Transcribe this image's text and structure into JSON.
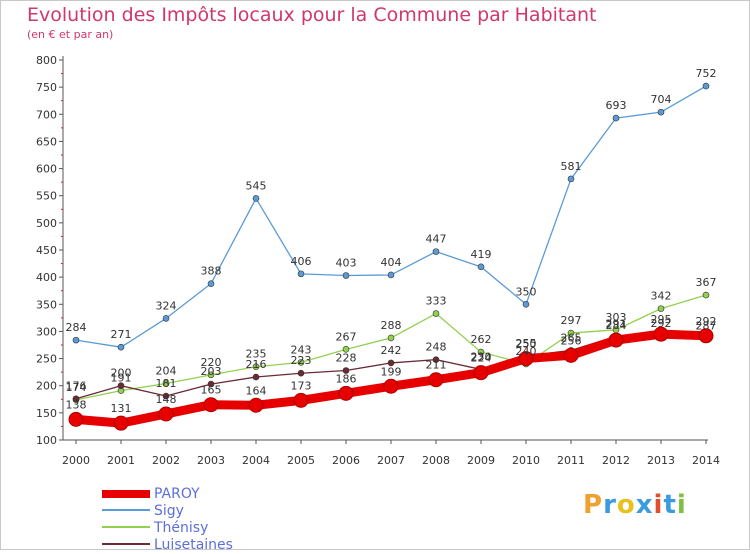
{
  "header": {
    "title": "Evolution des Impôts locaux pour la Commune par Habitant",
    "subtitle": "(en € et par an)"
  },
  "logo": {
    "letters": [
      "P",
      "r",
      "o",
      "x",
      "i",
      "t",
      "i"
    ],
    "colors": [
      "#f0a030",
      "#3a9be0",
      "#e8c020",
      "#3a9be0",
      "#e05030",
      "#3a9be0",
      "#80c040"
    ]
  },
  "chart_data": {
    "type": "line",
    "title": "Evolution des Impôts locaux pour la Commune par Habitant",
    "subtitle": "(en € et par an)",
    "x": [
      "2000",
      "2001",
      "2002",
      "2003",
      "2004",
      "2005",
      "2006",
      "2007",
      "2008",
      "2009",
      "2010",
      "2011",
      "2012",
      "2013",
      "2014"
    ],
    "ylim": [
      100,
      800
    ],
    "yticks": [
      100,
      150,
      200,
      250,
      300,
      350,
      400,
      450,
      500,
      550,
      600,
      650,
      700,
      750,
      800
    ],
    "grid": false,
    "legend": "bottom-left",
    "series": [
      {
        "name": "PAROY",
        "color": "#e60000",
        "values": [
          138,
          131,
          148,
          165,
          164,
          173,
          186,
          199,
          211,
          224,
          250,
          256,
          284,
          295,
          292
        ]
      },
      {
        "name": "Sigy",
        "color": "#5b9bd5",
        "values": [
          284,
          271,
          324,
          388,
          545,
          406,
          403,
          404,
          447,
          419,
          350,
          581,
          693,
          704,
          752
        ]
      },
      {
        "name": "Thénisy",
        "color": "#92d050",
        "values": [
          174,
          191,
          204,
          220,
          235,
          243,
          267,
          288,
          333,
          262,
          240,
          297,
          303,
          342,
          367
        ]
      },
      {
        "name": "Luisetaines",
        "color": "#6b2a34",
        "values": [
          176,
          200,
          181,
          203,
          216,
          223,
          228,
          242,
          248,
          230,
          255,
          265,
          291,
          292,
          287
        ]
      }
    ]
  }
}
